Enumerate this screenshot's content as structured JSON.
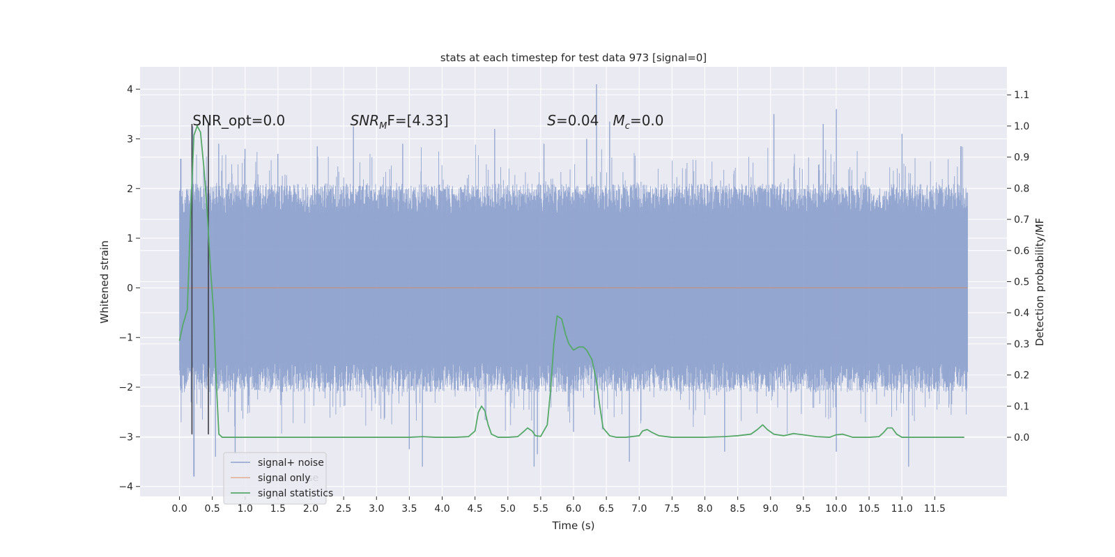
{
  "chart_data": {
    "type": "line",
    "title": "stats at each timestep for test data 973 [signal=0]",
    "xlabel": "Time (s)",
    "ylabel_left": "Whitened strain",
    "ylabel_right": "Detection probability/MF",
    "xlim": [
      -0.6,
      12.6
    ],
    "ylim_left": [
      -4.2,
      4.45
    ],
    "ylim_right": [
      -0.19,
      1.19
    ],
    "x_ticks": [
      0.0,
      0.5,
      1.0,
      1.5,
      2.0,
      2.5,
      3.0,
      3.5,
      4.0,
      4.5,
      5.0,
      5.5,
      6.0,
      6.5,
      7.0,
      7.5,
      8.0,
      8.5,
      9.0,
      9.5,
      10.0,
      10.5,
      11.0,
      11.5
    ],
    "x_tick_labels": [
      "0.0",
      "0.5",
      "1.0",
      "1.5",
      "2.0",
      "2.5",
      "3.0",
      "3.5",
      "4.0",
      "4.5",
      "5.0",
      "5.5",
      "6.0",
      "6.5",
      "7.0",
      "7.5",
      "8.0",
      "8.5",
      "9.0",
      "9.5",
      "10.0",
      "10.5",
      "11.0",
      "11.5"
    ],
    "y_left_ticks": [
      -4,
      -3,
      -2,
      -1,
      0,
      1,
      2,
      3,
      4
    ],
    "y_left_tick_labels": [
      "−4",
      "−3",
      "−2",
      "−1",
      "0",
      "1",
      "2",
      "3",
      "4"
    ],
    "y_right_ticks": [
      0.0,
      0.1,
      0.2,
      0.3,
      0.4,
      0.5,
      0.6,
      0.7,
      0.8,
      0.9,
      1.0,
      1.1
    ],
    "y_right_tick_labels": [
      "0.0",
      "0.1",
      "0.2",
      "0.3",
      "0.4",
      "0.5",
      "0.6",
      "0.7",
      "0.8",
      "0.9",
      "1.0",
      "1.1"
    ],
    "grid": true,
    "legend_position": "lower-left",
    "series": [
      {
        "name": "signal+ noise",
        "axis": "left",
        "color": "#8ea2cd",
        "x_range": [
          0.0,
          12.0
        ],
        "typical_range": [
          -1.5,
          1.5
        ],
        "spike_maxima": [
          {
            "x": 0.02,
            "y": 2.6
          },
          {
            "x": 0.2,
            "y": 3.25
          },
          {
            "x": 0.6,
            "y": 2.9
          },
          {
            "x": 1.0,
            "y": 2.8
          },
          {
            "x": 1.5,
            "y": 2.7
          },
          {
            "x": 2.1,
            "y": 2.85
          },
          {
            "x": 2.65,
            "y": 3.25
          },
          {
            "x": 3.4,
            "y": 2.9
          },
          {
            "x": 4.8,
            "y": 3.2
          },
          {
            "x": 5.55,
            "y": 2.9
          },
          {
            "x": 6.2,
            "y": 3.0
          },
          {
            "x": 6.35,
            "y": 4.1
          },
          {
            "x": 6.55,
            "y": 3.35
          },
          {
            "x": 9.05,
            "y": 3.5
          },
          {
            "x": 9.8,
            "y": 3.3
          },
          {
            "x": 10.0,
            "y": 3.6
          },
          {
            "x": 11.0,
            "y": 3.1
          },
          {
            "x": 11.9,
            "y": 2.85
          }
        ],
        "spike_minima": [
          {
            "x": 0.22,
            "y": -3.8
          },
          {
            "x": 0.55,
            "y": -3.4
          },
          {
            "x": 0.85,
            "y": -3.35
          },
          {
            "x": 3.5,
            "y": -3.25
          },
          {
            "x": 3.7,
            "y": -3.6
          },
          {
            "x": 5.4,
            "y": -3.6
          },
          {
            "x": 5.45,
            "y": -3.35
          },
          {
            "x": 6.0,
            "y": -2.9
          },
          {
            "x": 6.85,
            "y": -3.5
          },
          {
            "x": 8.3,
            "y": -3.3
          },
          {
            "x": 10.0,
            "y": -3.3
          },
          {
            "x": 11.1,
            "y": -3.6
          }
        ]
      },
      {
        "name": "signal only",
        "axis": "left",
        "color": "#dd8452",
        "x": [
          0.0,
          12.0
        ],
        "y": [
          0.0,
          0.0
        ]
      },
      {
        "name": "signal statistics",
        "axis": "right",
        "color": "#55a868",
        "x": [
          0.0,
          0.05,
          0.12,
          0.17,
          0.22,
          0.27,
          0.32,
          0.37,
          0.42,
          0.47,
          0.52,
          0.56,
          0.6,
          0.65,
          0.75,
          1.0,
          2.0,
          3.0,
          3.5,
          3.7,
          3.9,
          4.2,
          4.4,
          4.5,
          4.55,
          4.6,
          4.65,
          4.7,
          4.75,
          4.85,
          5.0,
          5.15,
          5.25,
          5.3,
          5.37,
          5.42,
          5.5,
          5.6,
          5.65,
          5.7,
          5.75,
          5.82,
          5.88,
          5.93,
          6.0,
          6.08,
          6.15,
          6.2,
          6.28,
          6.35,
          6.4,
          6.45,
          6.55,
          6.65,
          6.8,
          7.0,
          7.05,
          7.12,
          7.2,
          7.3,
          7.5,
          8.0,
          8.3,
          8.5,
          8.7,
          8.8,
          8.88,
          8.95,
          9.05,
          9.2,
          9.35,
          9.5,
          9.7,
          9.9,
          10.0,
          10.1,
          10.25,
          10.5,
          10.65,
          10.72,
          10.78,
          10.85,
          10.92,
          11.0,
          11.2,
          11.5,
          11.95
        ],
        "y": [
          0.31,
          0.36,
          0.41,
          0.72,
          0.97,
          1.0,
          0.98,
          0.87,
          0.73,
          0.55,
          0.4,
          0.18,
          0.01,
          0.0,
          0.0,
          0.0,
          0.0,
          0.0,
          0.0,
          0.002,
          0.0,
          0.0,
          0.002,
          0.02,
          0.08,
          0.1,
          0.085,
          0.04,
          0.01,
          0.0,
          0.0,
          0.002,
          0.02,
          0.03,
          0.02,
          0.005,
          0.003,
          0.04,
          0.15,
          0.3,
          0.39,
          0.38,
          0.33,
          0.3,
          0.28,
          0.29,
          0.29,
          0.28,
          0.25,
          0.18,
          0.1,
          0.03,
          0.005,
          0.0,
          0.0,
          0.005,
          0.02,
          0.025,
          0.015,
          0.005,
          0.0,
          0.0,
          0.002,
          0.005,
          0.01,
          0.025,
          0.04,
          0.025,
          0.01,
          0.005,
          0.012,
          0.008,
          0.002,
          0.0,
          0.008,
          0.01,
          0.0,
          0.0,
          0.002,
          0.015,
          0.03,
          0.03,
          0.01,
          0.0,
          0.0,
          0.0,
          0.0
        ]
      }
    ],
    "vertical_markers": [
      {
        "x": 0.19,
        "y_range": [
          -2.95,
          3.3
        ],
        "color": "#3c3c46"
      },
      {
        "x": 0.44,
        "y_range": [
          -2.95,
          3.3
        ],
        "color": "#3c3c46"
      }
    ],
    "annotations": [
      {
        "key": "snr_opt",
        "text": "SNR_opt=0.0",
        "x": 0.2,
        "y": 3.27
      },
      {
        "key": "snr_mf",
        "text": "SNR_MF=[4.33]",
        "x": 2.6,
        "y": 3.27
      },
      {
        "key": "s_stat",
        "text": "S=0.04",
        "x": 5.6,
        "y": 3.27
      },
      {
        "key": "mc",
        "text": "M_c=0.0",
        "x": 6.6,
        "y": 3.27
      }
    ],
    "legend_ghost_text": "noise"
  },
  "colors": {
    "plot_background": "#eaeaf2",
    "grid": "#ffffff",
    "text": "#262626"
  }
}
